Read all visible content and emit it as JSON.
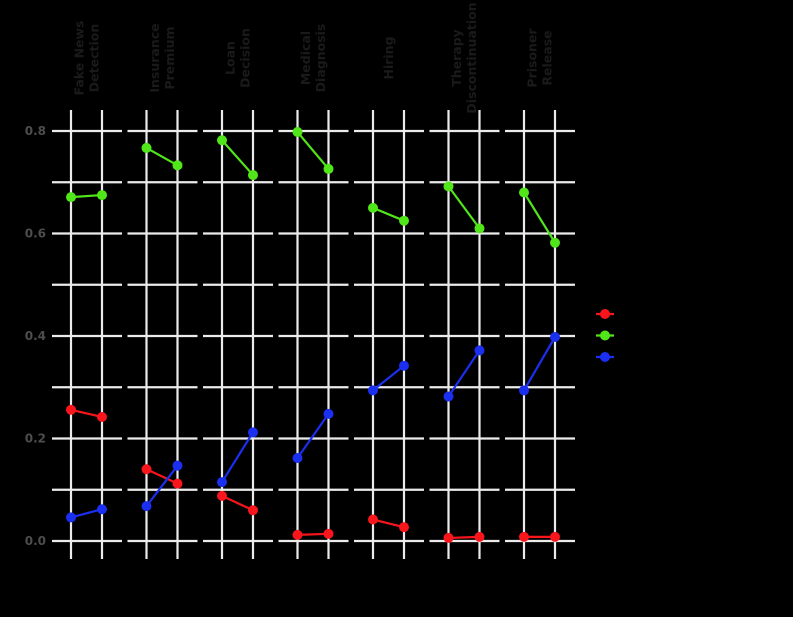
{
  "chart_data": {
    "type": "line",
    "title": "",
    "xlabel": "",
    "ylabel": "",
    "ylim": [
      0.0,
      0.8
    ],
    "yticks": [
      0.0,
      0.2,
      0.4,
      0.6,
      0.8
    ],
    "ytick_labels": [
      "0.0",
      "0.2",
      "0.4",
      "0.6",
      "0.8"
    ],
    "grid": true,
    "facets": [
      {
        "label": [
          "Fake News",
          "Detection"
        ],
        "x": [
          "",
          ""
        ],
        "series": {
          "red": [
            0.256,
            0.242
          ],
          "green": [
            0.671,
            0.675
          ],
          "blue": [
            0.046,
            0.062
          ]
        }
      },
      {
        "label": [
          "Insurance",
          "Premium"
        ],
        "x": [
          "",
          ""
        ],
        "series": {
          "red": [
            0.14,
            0.112
          ],
          "green": [
            0.767,
            0.733
          ],
          "blue": [
            0.068,
            0.147
          ]
        }
      },
      {
        "label": [
          "Loan",
          "Decision"
        ],
        "x": [
          "",
          ""
        ],
        "series": {
          "red": [
            0.088,
            0.06
          ],
          "green": [
            0.782,
            0.714
          ],
          "blue": [
            0.115,
            0.212
          ]
        }
      },
      {
        "label": [
          "Medical",
          "Diagnosis"
        ],
        "x": [
          "",
          ""
        ],
        "series": {
          "red": [
            0.012,
            0.014
          ],
          "green": [
            0.798,
            0.726
          ],
          "blue": [
            0.162,
            0.248
          ]
        }
      },
      {
        "label": [
          "Hiring"
        ],
        "x": [
          "",
          ""
        ],
        "series": {
          "red": [
            0.042,
            0.027
          ],
          "green": [
            0.65,
            0.625
          ],
          "blue": [
            0.294,
            0.342
          ]
        }
      },
      {
        "label": [
          "Therapy",
          "Discontinuation"
        ],
        "x": [
          "",
          ""
        ],
        "series": {
          "red": [
            0.006,
            0.008
          ],
          "green": [
            0.692,
            0.61
          ],
          "blue": [
            0.282,
            0.372
          ]
        }
      },
      {
        "label": [
          "Prisoner",
          "Release"
        ],
        "x": [
          "",
          ""
        ],
        "series": {
          "red": [
            0.008,
            0.008
          ],
          "green": [
            0.68,
            0.582
          ],
          "blue": [
            0.294,
            0.398
          ]
        }
      }
    ],
    "series": [
      {
        "name": "",
        "key": "red",
        "color": "#f8151c"
      },
      {
        "name": "",
        "key": "green",
        "color": "#51e619"
      },
      {
        "name": "",
        "key": "blue",
        "color": "#1a2ff0"
      }
    ],
    "legend_position": "right"
  },
  "colors": {
    "background": "#000000",
    "grid": "#ebebeb",
    "axis_text": "#4d4d4d",
    "strip_text": "#1a1a1a"
  }
}
